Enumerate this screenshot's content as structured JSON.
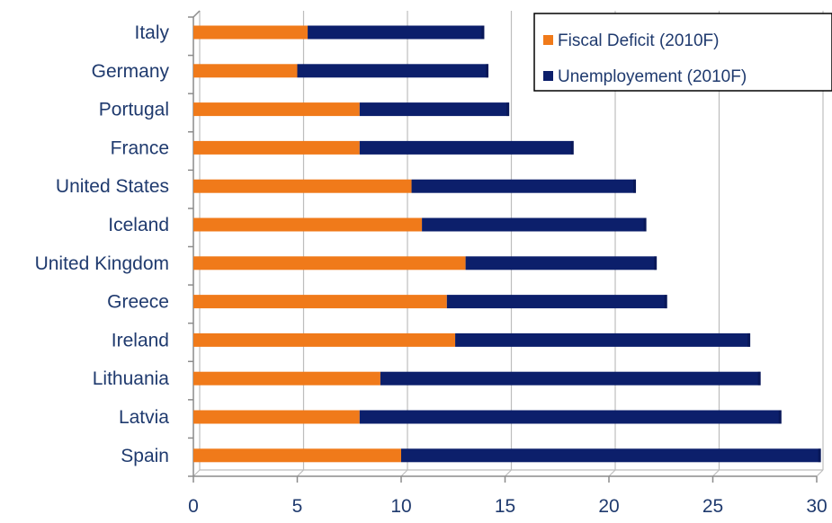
{
  "chart_data": {
    "type": "bar",
    "orientation": "horizontal",
    "stacked": true,
    "categories": [
      "Italy",
      "Germany",
      "Portugal",
      "France",
      "United States",
      "Iceland",
      "United Kingdom",
      "Greece",
      "Ireland",
      "Lithuania",
      "Latvia",
      "Spain"
    ],
    "series": [
      {
        "name": "Fiscal Deficit (2010F)",
        "color": "#f07a1a",
        "values": [
          5.5,
          5.0,
          8.0,
          8.0,
          10.5,
          11.0,
          13.1,
          12.2,
          12.6,
          9.0,
          8.0,
          10.0
        ]
      },
      {
        "name": "Unemployement (2010F)",
        "color": "#0c1f6b",
        "values": [
          8.5,
          9.2,
          7.2,
          10.3,
          10.8,
          10.8,
          9.2,
          10.6,
          14.2,
          18.3,
          20.3,
          20.2
        ]
      }
    ],
    "xlim": [
      0,
      30
    ],
    "xticks": [
      "0",
      "5",
      "10",
      "15",
      "20",
      "25",
      "30"
    ],
    "grid": true,
    "legend_position": "top-right"
  }
}
